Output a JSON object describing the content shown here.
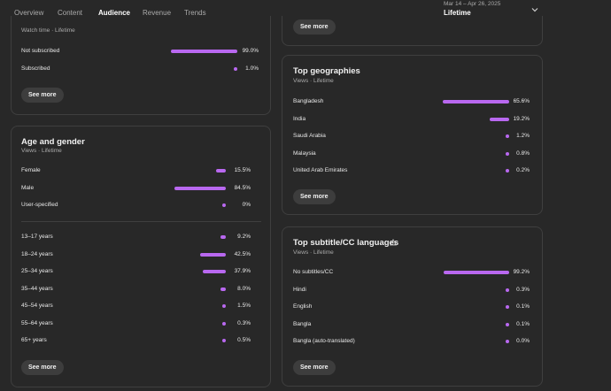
{
  "tabs": [
    {
      "label": "Overview"
    },
    {
      "label": "Content"
    },
    {
      "label": "Audience"
    },
    {
      "label": "Revenue"
    },
    {
      "label": "Trends"
    }
  ],
  "date_range": {
    "label": "Mar 14 – Apr 26, 2025",
    "value": "Lifetime"
  },
  "accent_color": "#b968f0",
  "subscription_card": {
    "subtitle": "Watch time · Lifetime",
    "rows": [
      {
        "label": "Not subscribed",
        "value": "99.0%",
        "fraction": 0.99
      },
      {
        "label": "Subscribed",
        "value": "1.0%",
        "fraction": 0.01
      }
    ],
    "see_more": "See more"
  },
  "age_gender_card": {
    "title": "Age and gender",
    "subtitle": "Views · Lifetime",
    "gender_rows": [
      {
        "label": "Female",
        "value": "15.5%",
        "fraction": 0.155
      },
      {
        "label": "Male",
        "value": "84.5%",
        "fraction": 0.845
      },
      {
        "label": "User-specified",
        "value": "0%",
        "fraction": 0
      }
    ],
    "age_rows": [
      {
        "label": "13–17 years",
        "value": "9.2%",
        "fraction": 0.092
      },
      {
        "label": "18–24 years",
        "value": "42.5%",
        "fraction": 0.425
      },
      {
        "label": "25–34 years",
        "value": "37.9%",
        "fraction": 0.379
      },
      {
        "label": "35–44 years",
        "value": "8.0%",
        "fraction": 0.08
      },
      {
        "label": "45–54 years",
        "value": "1.5%",
        "fraction": 0.015
      },
      {
        "label": "55–64 years",
        "value": "0.3%",
        "fraction": 0.003
      },
      {
        "label": "65+ years",
        "value": "0.5%",
        "fraction": 0.005
      }
    ],
    "see_more": "See more"
  },
  "top_card": {
    "see_more": "See more"
  },
  "geographies_card": {
    "title": "Top geographies",
    "subtitle": "Views · Lifetime",
    "rows": [
      {
        "label": "Bangladesh",
        "value": "65.6%",
        "fraction": 0.656
      },
      {
        "label": "India",
        "value": "19.2%",
        "fraction": 0.192
      },
      {
        "label": "Saudi Arabia",
        "value": "1.2%",
        "fraction": 0.012
      },
      {
        "label": "Malaysia",
        "value": "0.8%",
        "fraction": 0.008
      },
      {
        "label": "United Arab Emirates",
        "value": "0.2%",
        "fraction": 0.002
      }
    ],
    "see_more": "See more"
  },
  "languages_card": {
    "title": "Top subtitle/CC languages",
    "subtitle": "Views · Lifetime",
    "rows": [
      {
        "label": "No subtitles/CC",
        "value": "99.2%",
        "fraction": 0.992
      },
      {
        "label": "Hindi",
        "value": "0.3%",
        "fraction": 0.003
      },
      {
        "label": "English",
        "value": "0.1%",
        "fraction": 0.001
      },
      {
        "label": "Bangla",
        "value": "0.1%",
        "fraction": 0.001
      },
      {
        "label": "Bangla (auto-translated)",
        "value": "0.0%",
        "fraction": 0
      }
    ],
    "see_more": "See more"
  }
}
